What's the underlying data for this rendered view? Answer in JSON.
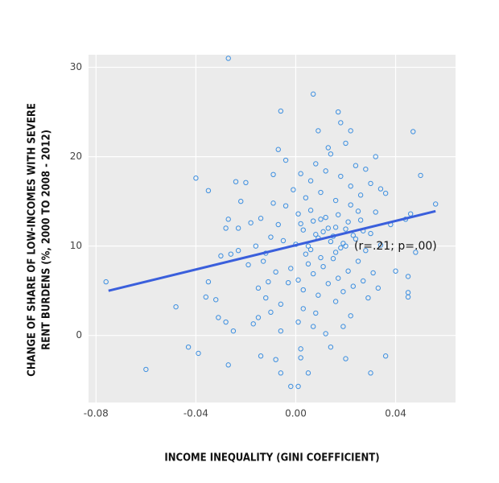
{
  "chart_data": {
    "type": "scatter",
    "xlabel": "INCOME INEQUALITY (GINI COEFFICIENT)",
    "ylabel": [
      "CHANGE OF SHARE OF LOW-INCOMES WITH SEVERE",
      "RENT BURDENS (%, 2000 TO 2008 - 2012)"
    ],
    "annotation": "(r=.21; p=.00)",
    "xlim": [
      -0.083,
      0.064
    ],
    "ylim": [
      -7.5,
      31.4
    ],
    "xticks": [
      -0.08,
      -0.04,
      {
        "value": 0,
        "label": "0.00"
      },
      0.04
    ],
    "yticks": [
      0,
      10,
      20,
      30
    ],
    "grid": true,
    "color": "#3d8fe0",
    "x": [
      -0.027,
      0.007,
      -0.006,
      0.017,
      0.047,
      0.05,
      -0.04,
      -0.035,
      -0.076,
      -0.048,
      -0.06,
      -0.043,
      -0.039,
      -0.027,
      -0.025,
      -0.028,
      -0.031,
      -0.032,
      -0.036,
      -0.035,
      -0.03,
      -0.026,
      -0.023,
      -0.028,
      -0.027,
      -0.023,
      -0.024,
      -0.02,
      -0.022,
      -0.017,
      -0.015,
      -0.014,
      -0.012,
      -0.01,
      -0.008,
      -0.006,
      -0.006,
      -0.002,
      0.001,
      0.002,
      0.002,
      0.005,
      0.007,
      0.012,
      0.014,
      0.019,
      0.02,
      0.03,
      0.036,
      0.045,
      0.045,
      0.056,
      0.046,
      0.044,
      0.048,
      0.04,
      0.045,
      0.0,
      0.002,
      0.004,
      0.006,
      0.008,
      0.01,
      0.012,
      0.014,
      0.016,
      0.018,
      0.02,
      0.022,
      0.024,
      0.026,
      0.028,
      0.03,
      0.032,
      0.034,
      0.036,
      0.038,
      -0.002,
      0.001,
      0.003,
      0.005,
      0.007,
      0.009,
      0.011,
      0.013,
      0.015,
      0.017,
      0.019,
      0.021,
      0.023,
      0.025,
      0.027,
      0.029,
      0.031,
      0.033,
      -0.004,
      -0.001,
      0.002,
      0.004,
      0.006,
      0.008,
      0.01,
      0.012,
      0.014,
      0.016,
      0.018,
      0.02,
      0.022,
      0.024,
      0.026,
      0.028,
      0.03,
      0.032,
      0.034,
      -0.01,
      -0.012,
      -0.014,
      -0.008,
      -0.007,
      -0.005,
      -0.009,
      -0.011,
      -0.013,
      -0.016,
      -0.018,
      -0.019,
      -0.015,
      -0.006,
      -0.003,
      -0.009,
      -0.007,
      -0.004,
      0.003,
      0.005,
      0.007,
      0.009,
      0.011,
      0.013,
      0.015,
      0.017,
      0.019,
      0.021,
      0.023,
      0.025,
      0.027,
      0.001,
      0.006,
      0.01,
      0.016,
      0.02,
      0.009,
      0.018,
      0.022,
      0.013,
      0.003,
      0.008,
      0.016,
      0.022,
      0.001
    ],
    "values": [
      31,
      27,
      25.1,
      25,
      22.8,
      17.9,
      17.6,
      16.2,
      6.0,
      3.2,
      -3.8,
      -1.3,
      -2.0,
      -3.3,
      0.5,
      1.5,
      2.0,
      4.0,
      4.3,
      6.0,
      8.9,
      9.1,
      9.5,
      12.0,
      13.0,
      12.0,
      17.2,
      17.1,
      15.0,
      1.3,
      2.0,
      -2.3,
      4.2,
      2.6,
      -2.7,
      -4.2,
      0.5,
      -5.7,
      -5.7,
      -1.5,
      -2.5,
      -4.2,
      1.0,
      0.2,
      -1.3,
      1.0,
      -2.6,
      -4.2,
      -2.3,
      4.3,
      4.8,
      14.7,
      13.6,
      13.0,
      9.3,
      7.2,
      6.6,
      10.2,
      12.5,
      9.1,
      14.0,
      11.3,
      8.7,
      13.2,
      10.5,
      12.1,
      9.8,
      11.9,
      14.6,
      10.8,
      12.9,
      9.5,
      11.4,
      13.8,
      10.1,
      15.9,
      12.4,
      7.5,
      6.2,
      5.1,
      8.0,
      6.9,
      4.5,
      7.7,
      5.8,
      8.6,
      6.4,
      4.9,
      7.2,
      5.5,
      8.3,
      6.1,
      4.2,
      7.0,
      5.3,
      14.5,
      16.3,
      18.1,
      15.4,
      17.3,
      19.2,
      16.0,
      18.4,
      20.3,
      15.1,
      17.8,
      21.5,
      16.7,
      19.0,
      15.7,
      18.6,
      17.0,
      20.0,
      16.4,
      11.0,
      9.2,
      13.1,
      7.1,
      12.4,
      10.6,
      14.8,
      6.0,
      8.3,
      10.0,
      12.6,
      7.9,
      5.3,
      3.5,
      5.9,
      18.0,
      20.8,
      19.6,
      11.8,
      10.0,
      12.8,
      10.9,
      11.6,
      12.0,
      11.1,
      13.5,
      10.3,
      12.7,
      11.2,
      13.9,
      11.7,
      13.6,
      9.6,
      13.0,
      9.3,
      10.0,
      22.9,
      23.8,
      22.9,
      21.0,
      3.0,
      2.5,
      3.8,
      2.2,
      1.5
    ],
    "trend": {
      "x": [
        -0.075,
        0.056
      ],
      "values": [
        5.0,
        13.9
      ],
      "color": "#3a5fdc"
    }
  }
}
